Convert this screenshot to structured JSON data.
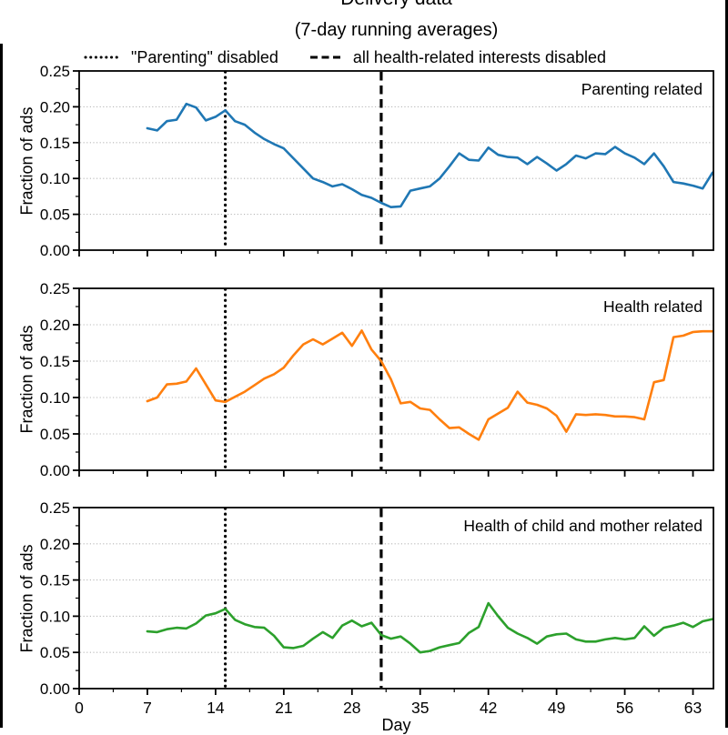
{
  "figure": {
    "title": "Delivery data",
    "subtitle": "(7-day running averages)"
  },
  "chart_data": {
    "type": "line",
    "title": "Delivery data",
    "subtitle": "(7-day running averages)",
    "x_label": "Day",
    "y_label": "Fraction of ads",
    "xlim": [
      0,
      65.1
    ],
    "ylim": [
      0,
      0.25
    ],
    "x_ticks": [
      0,
      7,
      14,
      21,
      28,
      35,
      42,
      49,
      56,
      63
    ],
    "x_tick_labels": [
      "0",
      "7",
      "14",
      "21",
      "28",
      "35",
      "42",
      "49",
      "56",
      "63"
    ],
    "y_ticks": [
      0,
      0.05,
      0.1,
      0.15,
      0.2,
      0.25
    ],
    "y_tick_labels": [
      "0.00",
      "0.05",
      "0.10",
      "0.15",
      "0.20",
      "0.25"
    ],
    "grid": "horizontal dotted gridlines at 0.05, 0.10, 0.15, 0.20",
    "legend_position": "upper center, above panels, no frame",
    "days": [
      7,
      8,
      9,
      10,
      11,
      12,
      13,
      14,
      15,
      16,
      17,
      18,
      19,
      20,
      21,
      22,
      23,
      24,
      25,
      26,
      27,
      28,
      29,
      30,
      31,
      32,
      33,
      34,
      35,
      36,
      37,
      38,
      39,
      40,
      41,
      42,
      43,
      44,
      45,
      46,
      47,
      48,
      49,
      50,
      51,
      52,
      53,
      54,
      55,
      56,
      57,
      58,
      59,
      60,
      61,
      62,
      63,
      64,
      65
    ],
    "events": [
      {
        "day": 15,
        "style": "dotted",
        "label": "\"Parenting\" disabled",
        "color": "#000000"
      },
      {
        "day": 31,
        "style": "dashed",
        "label": "all health-related interests disabled",
        "color": "#000000"
      }
    ],
    "panels": [
      {
        "label": "Parenting related",
        "color": "#1f77b4",
        "values": [
          0.17,
          0.167,
          0.18,
          0.182,
          0.204,
          0.199,
          0.181,
          0.186,
          0.195,
          0.18,
          0.175,
          0.164,
          0.155,
          0.148,
          0.142,
          0.128,
          0.114,
          0.1,
          0.095,
          0.089,
          0.092,
          0.085,
          0.077,
          0.073,
          0.066,
          0.06,
          0.061,
          0.083,
          0.086,
          0.089,
          0.1,
          0.117,
          0.135,
          0.126,
          0.125,
          0.143,
          0.133,
          0.13,
          0.129,
          0.12,
          0.13,
          0.121,
          0.111,
          0.12,
          0.132,
          0.128,
          0.135,
          0.134,
          0.144,
          0.135,
          0.129,
          0.12,
          0.135,
          0.117,
          0.095,
          0.093,
          0.09,
          0.086,
          0.108
        ]
      },
      {
        "label": "Health related",
        "color": "#ff7f0e",
        "values": [
          0.095,
          0.1,
          0.118,
          0.119,
          0.122,
          0.14,
          0.118,
          0.096,
          0.094,
          0.101,
          0.108,
          0.117,
          0.126,
          0.132,
          0.141,
          0.158,
          0.173,
          0.18,
          0.173,
          0.181,
          0.189,
          0.171,
          0.192,
          0.166,
          0.15,
          0.125,
          0.092,
          0.094,
          0.085,
          0.083,
          0.07,
          0.058,
          0.059,
          0.05,
          0.042,
          0.07,
          0.078,
          0.086,
          0.108,
          0.093,
          0.09,
          0.085,
          0.075,
          0.053,
          0.077,
          0.076,
          0.077,
          0.076,
          0.074,
          0.074,
          0.073,
          0.07,
          0.121,
          0.124,
          0.183,
          0.185,
          0.19,
          0.191,
          0.191
        ]
      },
      {
        "label": "Health of child and mother related",
        "color": "#2ca02c",
        "values": [
          0.079,
          0.078,
          0.082,
          0.084,
          0.083,
          0.09,
          0.101,
          0.104,
          0.11,
          0.095,
          0.089,
          0.085,
          0.084,
          0.073,
          0.057,
          0.056,
          0.059,
          0.069,
          0.078,
          0.07,
          0.087,
          0.094,
          0.086,
          0.091,
          0.074,
          0.069,
          0.072,
          0.062,
          0.05,
          0.052,
          0.057,
          0.06,
          0.063,
          0.077,
          0.085,
          0.118,
          0.1,
          0.084,
          0.076,
          0.07,
          0.062,
          0.072,
          0.075,
          0.076,
          0.068,
          0.065,
          0.065,
          0.068,
          0.07,
          0.068,
          0.07,
          0.086,
          0.073,
          0.084,
          0.087,
          0.091,
          0.085,
          0.093,
          0.096
        ]
      }
    ]
  }
}
